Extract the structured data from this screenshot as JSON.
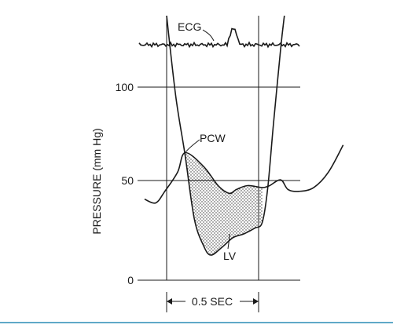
{
  "chart_data": {
    "type": "line",
    "ylabel": "PRESSURE (mm Hg)",
    "ylim": [
      0,
      130
    ],
    "yticks": [
      0,
      50,
      100
    ],
    "grid": "horizontal lines at 0, 50 and 100",
    "time_scale_label": "0.5 SEC",
    "shaded_area": "region between PCW and LV traces, shown stippled",
    "series": [
      {
        "name": "PCW",
        "color": "#1a1a1a",
        "points": [
          [
            -0.12,
            42
          ],
          [
            -0.06,
            40
          ],
          [
            -0.01,
            46
          ],
          [
            0.06,
            56
          ],
          [
            0.1,
            66
          ],
          [
            0.2,
            59
          ],
          [
            0.28,
            49
          ],
          [
            0.34,
            45
          ],
          [
            0.38,
            47
          ],
          [
            0.44,
            49
          ],
          [
            0.52,
            48
          ],
          [
            0.56,
            49
          ],
          [
            0.62,
            52
          ],
          [
            0.66,
            47
          ],
          [
            0.72,
            46
          ],
          [
            0.8,
            48
          ],
          [
            0.88,
            56
          ],
          [
            0.96,
            70
          ]
        ]
      },
      {
        "name": "LV",
        "color": "#1a1a1a",
        "points": [
          [
            0.0,
            140
          ],
          [
            0.05,
            95
          ],
          [
            0.1,
            65
          ],
          [
            0.15,
            32
          ],
          [
            0.2,
            18
          ],
          [
            0.24,
            13
          ],
          [
            0.3,
            17
          ],
          [
            0.36,
            22
          ],
          [
            0.42,
            24
          ],
          [
            0.48,
            27
          ],
          [
            0.52,
            30
          ],
          [
            0.55,
            48
          ],
          [
            0.58,
            80
          ],
          [
            0.62,
            120
          ],
          [
            0.64,
            140
          ]
        ]
      },
      {
        "name": "ECG",
        "color": "#1a1a1a"
      }
    ],
    "annotations": [
      {
        "text": "ECG",
        "target": "ECG"
      },
      {
        "text": "PCW",
        "target": "PCW"
      },
      {
        "text": "LV",
        "target": "LV"
      }
    ]
  }
}
